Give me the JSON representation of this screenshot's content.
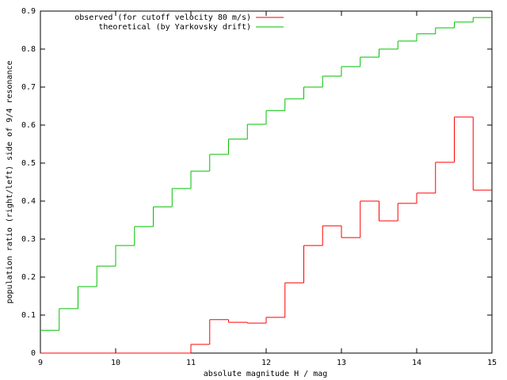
{
  "chart_data": {
    "type": "histogram",
    "xlabel": "absolute magnitude H / mag",
    "ylabel": "population ratio (right/left) side of 9/4 resonance",
    "bins": [
      9,
      9.25,
      9.5,
      9.75,
      10,
      10.25,
      10.5,
      10.75,
      11,
      11.25,
      11.5,
      11.75,
      12,
      12.25,
      12.5,
      12.75,
      13,
      13.25,
      13.5,
      13.75,
      14,
      14.25,
      14.5,
      14.75,
      15
    ],
    "series": [
      {
        "name": "observed (for cutoff velocity 80 m/s)",
        "color": "#ff0000",
        "values": [
          0,
          0,
          0,
          0,
          0,
          0,
          0,
          0,
          0.023,
          0.088,
          0.081,
          0.079,
          0.094,
          0.185,
          0.283,
          0.335,
          0.304,
          0.4,
          0.348,
          0.394,
          0.421,
          0.502,
          0.621,
          0.429
        ]
      },
      {
        "name": "theoretical (by Yarkovsky drift)",
        "color": "#00c000",
        "values": [
          0.06,
          0.117,
          0.175,
          0.229,
          0.283,
          0.333,
          0.385,
          0.433,
          0.479,
          0.523,
          0.563,
          0.602,
          0.638,
          0.669,
          0.7,
          0.729,
          0.754,
          0.779,
          0.8,
          0.821,
          0.84,
          0.856,
          0.871,
          0.883
        ]
      }
    ],
    "xlim": [
      9,
      15
    ],
    "ylim": [
      0,
      0.9
    ],
    "xticks": [
      9,
      10,
      11,
      12,
      13,
      14,
      15
    ],
    "yticks": [
      0,
      0.1,
      0.2,
      0.3,
      0.4,
      0.5,
      0.6,
      0.7,
      0.8,
      0.9
    ],
    "legend": "top-left"
  }
}
